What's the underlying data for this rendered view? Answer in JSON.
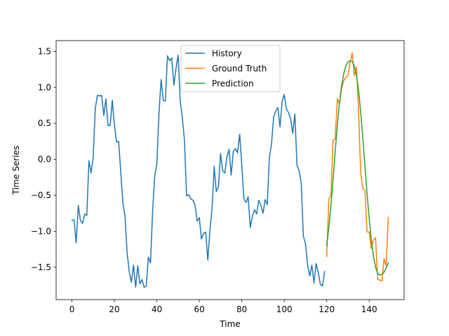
{
  "chart_data": {
    "type": "line",
    "title": "",
    "xlabel": "Time",
    "ylabel": "Time Series",
    "xlim": [
      -7.45,
      156.45
    ],
    "ylim": [
      -1.95,
      1.65
    ],
    "xticks": [
      0,
      20,
      40,
      60,
      80,
      100,
      120,
      140
    ],
    "yticks": [
      -1.5,
      -1.0,
      -0.5,
      0.0,
      0.5,
      1.0,
      1.5
    ],
    "ytick_labels": [
      "−1.5",
      "−1.0",
      "−0.5",
      "0.0",
      "0.5",
      "1.0",
      "1.5"
    ],
    "grid": false,
    "legend_position": "upper center",
    "series": [
      {
        "name": "History",
        "color": "#1f77b4",
        "x_start": 0,
        "values": [
          -0.85,
          -0.84,
          -1.16,
          -0.64,
          -0.85,
          -0.89,
          -0.76,
          -0.78,
          -0.02,
          -0.19,
          0.03,
          0.71,
          0.89,
          0.88,
          0.89,
          0.61,
          0.84,
          0.47,
          0.47,
          0.82,
          0.48,
          0.24,
          0.25,
          -0.18,
          -0.61,
          -0.79,
          -1.31,
          -1.56,
          -1.71,
          -1.47,
          -1.78,
          -1.48,
          -1.73,
          -1.67,
          -1.78,
          -1.76,
          -1.36,
          -1.44,
          -0.72,
          -0.23,
          -0.06,
          0.64,
          1.11,
          0.82,
          0.81,
          1.44,
          1.37,
          1.41,
          1.03,
          1.26,
          1.45,
          0.81,
          0.58,
          0.26,
          -0.51,
          -0.49,
          -0.55,
          -0.57,
          -0.64,
          -0.86,
          -0.81,
          -1.11,
          -1.03,
          -1.01,
          -1.4,
          -0.98,
          -0.68,
          -0.1,
          -0.45,
          -0.38,
          0.08,
          -0.16,
          -0.19,
          0.03,
          0.14,
          -0.22,
          0.11,
          0.15,
          0.09,
          0.35,
          -0.08,
          -0.55,
          -0.6,
          -0.52,
          -0.95,
          -0.79,
          -0.7,
          -0.76,
          -0.57,
          -0.64,
          -0.75,
          -0.56,
          -0.63,
          0.03,
          0.21,
          0.59,
          0.67,
          0.72,
          0.45,
          0.81,
          0.9,
          0.7,
          0.65,
          0.56,
          0.36,
          0.63,
          -0.08,
          -0.16,
          -0.33,
          -1.07,
          -1.17,
          -1.47,
          -1.62,
          -1.47,
          -1.72,
          -1.45,
          -1.57,
          -1.74,
          -1.76,
          -1.56
        ]
      },
      {
        "name": "Ground Truth",
        "color": "#ff7f0e",
        "x_start": 120,
        "values": [
          -1.35,
          -0.55,
          -0.5,
          0.27,
          0.28,
          0.84,
          0.77,
          0.98,
          1.09,
          1.14,
          1.16,
          1.34,
          1.48,
          1.16,
          1.28,
          0.67,
          -0.19,
          -0.4,
          -0.43,
          -1.01,
          -1.01,
          -1.24,
          -1.12,
          -1.09,
          -1.67,
          -1.68,
          -1.69,
          -1.38,
          -1.48,
          -0.81
        ]
      },
      {
        "name": "Prediction",
        "color": "#2ca02c",
        "x_start": 120,
        "values": [
          -1.2,
          -0.95,
          -0.64,
          -0.28,
          0.11,
          0.47,
          0.78,
          1.02,
          1.19,
          1.3,
          1.35,
          1.37,
          1.36,
          1.3,
          1.17,
          0.96,
          0.66,
          0.3,
          -0.09,
          -0.48,
          -0.82,
          -1.12,
          -1.34,
          -1.5,
          -1.58,
          -1.61,
          -1.6,
          -1.57,
          -1.51,
          -1.44
        ]
      }
    ]
  }
}
